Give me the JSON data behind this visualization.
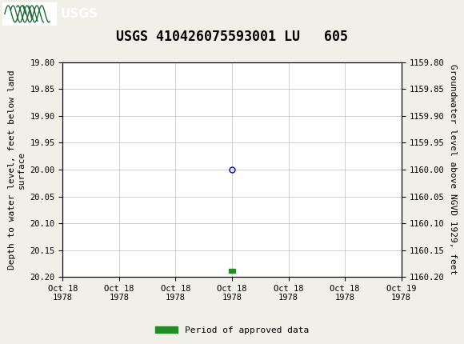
{
  "title": "USGS 410426075593001 LU   605",
  "ylabel_left": "Depth to water level, feet below land\nsurface",
  "ylabel_right": "Groundwater level above NGVD 1929, feet",
  "ylim_left": [
    19.8,
    20.2
  ],
  "ylim_right": [
    1159.8,
    1160.2
  ],
  "yticks_left": [
    19.8,
    19.85,
    19.9,
    19.95,
    20.0,
    20.05,
    20.1,
    20.15,
    20.2
  ],
  "yticks_right": [
    1159.8,
    1159.85,
    1159.9,
    1159.95,
    1160.0,
    1160.05,
    1160.1,
    1160.15,
    1160.2
  ],
  "data_point_x_hours": 12,
  "data_point_y": 20.0,
  "green_bar_x_hours": 12,
  "green_bar_y": 20.185,
  "header_color": "#1a6b3c",
  "background_color": "#f0f0e8",
  "plot_bg_color": "#ffffff",
  "grid_color": "#c8c8c8",
  "point_color": "#0000cc",
  "green_color": "#228B22",
  "legend_label": "Period of approved data",
  "xtick_labels": [
    "Oct 18\n1978",
    "Oct 18\n1978",
    "Oct 18\n1978",
    "Oct 18\n1978",
    "Oct 18\n1978",
    "Oct 18\n1978",
    "Oct 19\n1978"
  ],
  "xtick_positions_hours": [
    0,
    4,
    8,
    12,
    16,
    20,
    24
  ],
  "xlim": [
    0,
    24
  ],
  "title_fontsize": 12,
  "axis_label_fontsize": 8,
  "tick_fontsize": 7.5
}
